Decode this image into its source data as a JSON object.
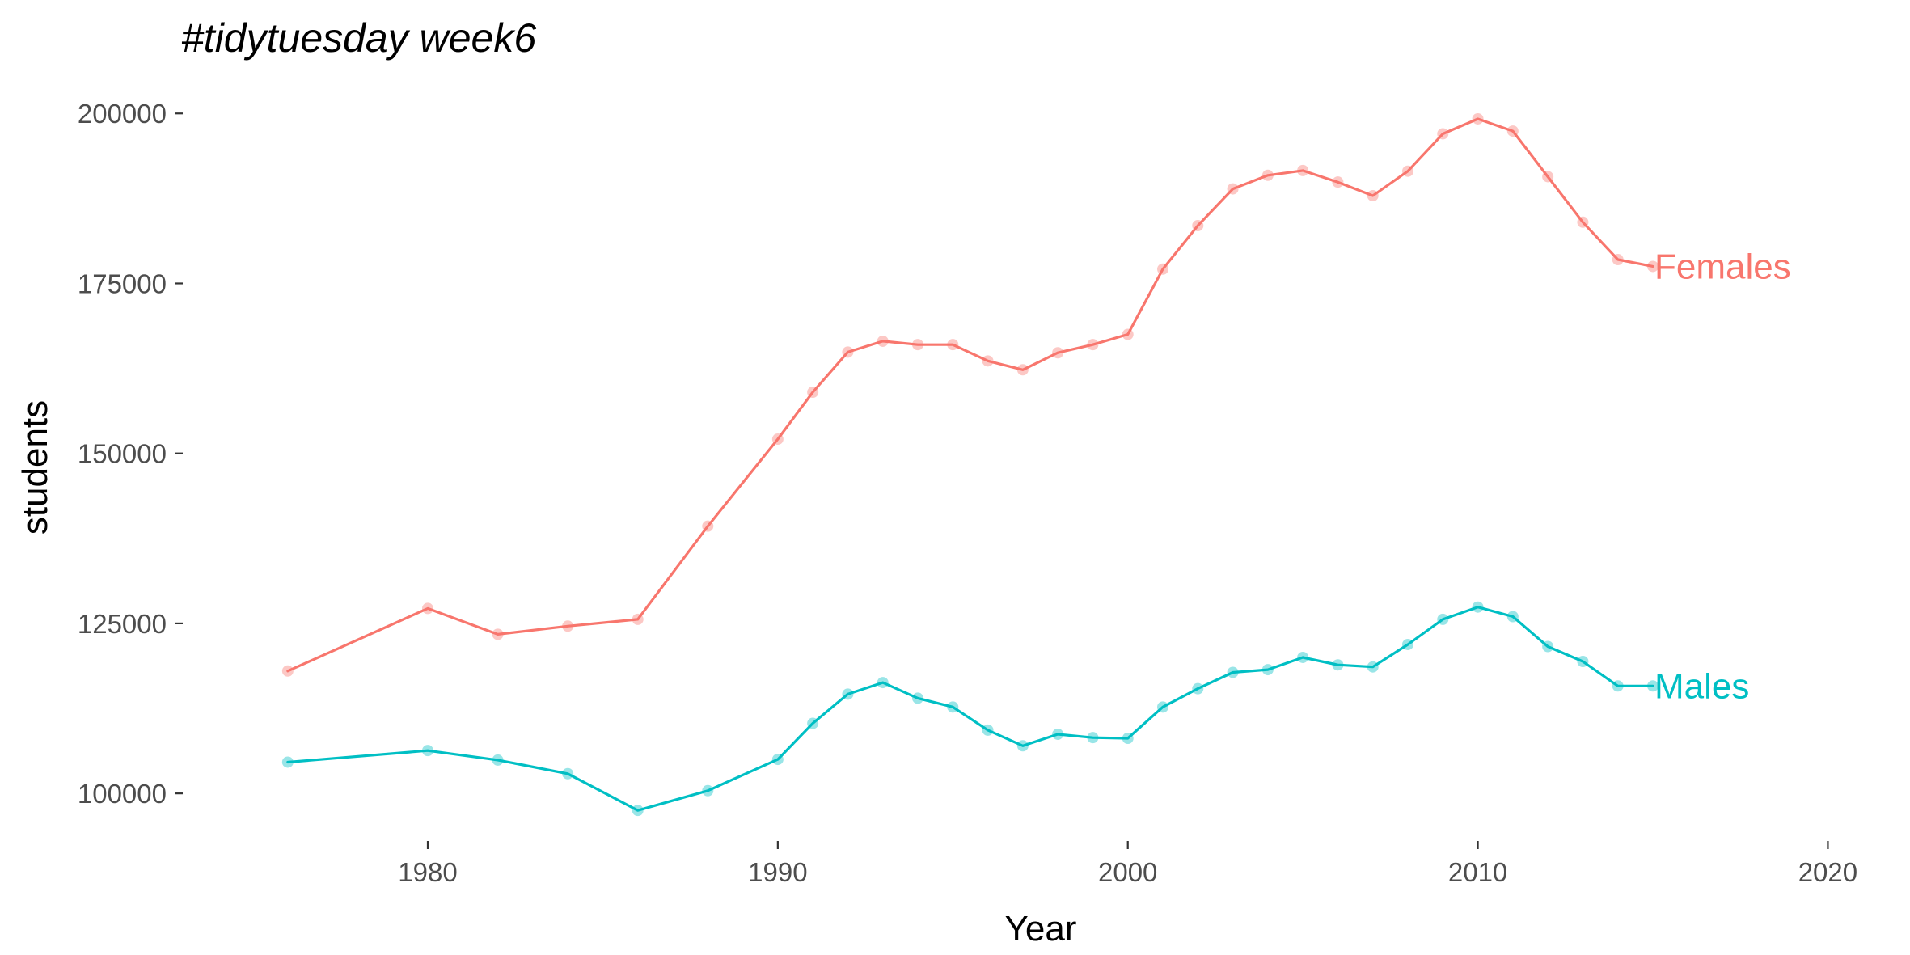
{
  "chart_data": {
    "type": "line",
    "title": "#tidytuesday week6",
    "xlabel": "Year",
    "ylabel": "students",
    "xlim": [
      1973,
      2022
    ],
    "ylim": [
      93000,
      205500
    ],
    "xticks": [
      1980,
      1990,
      2000,
      2010,
      2020
    ],
    "yticks": [
      100000,
      125000,
      150000,
      175000,
      200000
    ],
    "grid": false,
    "legend": "direct labels at line ends",
    "x": [
      1976,
      1980,
      1982,
      1984,
      1986,
      1988,
      1990,
      1991,
      1992,
      1993,
      1994,
      1995,
      1996,
      1997,
      1998,
      1999,
      2000,
      2001,
      2002,
      2003,
      2004,
      2005,
      2006,
      2007,
      2008,
      2009,
      2010,
      2011,
      2012,
      2013,
      2014,
      2015
    ],
    "series": [
      {
        "name": "Females",
        "color": "#F8766D",
        "values": [
          118000,
          127200,
          123400,
          124600,
          125600,
          139300,
          152100,
          159000,
          164900,
          166500,
          166000,
          166000,
          163600,
          162300,
          164800,
          166000,
          167500,
          177100,
          183500,
          188900,
          190900,
          191600,
          189900,
          187900,
          191500,
          197000,
          199200,
          197400,
          190700,
          184000,
          178500,
          177500
        ]
      },
      {
        "name": "Males",
        "color": "#00BFC4",
        "values": [
          104600,
          106300,
          104900,
          102900,
          97500,
          100400,
          105000,
          110300,
          114600,
          116300,
          114000,
          112700,
          109300,
          107000,
          108700,
          108200,
          108100,
          112700,
          115400,
          117800,
          118200,
          120000,
          118900,
          118600,
          121900,
          125600,
          127400,
          126000,
          121600,
          119400,
          115800,
          115800
        ]
      }
    ]
  }
}
